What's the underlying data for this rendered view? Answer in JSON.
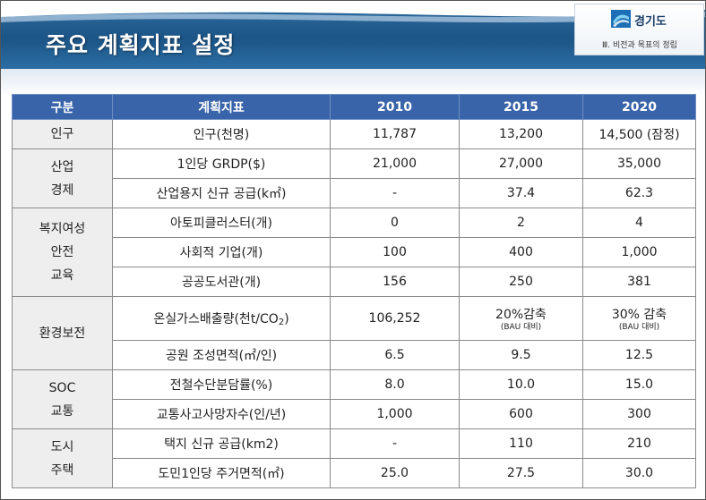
{
  "header": {
    "title": "주요 계획지표 설정",
    "brand": "경기도",
    "section": "Ⅲ. 비전과 목표의 정립"
  },
  "table": {
    "columns": [
      "구분",
      "계획지표",
      "2010",
      "2015",
      "2020"
    ],
    "groups": [
      {
        "category": [
          "인구"
        ],
        "rows": [
          {
            "indicator": "인구(천명)",
            "v2010": "11,787",
            "v2015": "13,200",
            "v2020": "14,500 (잠정)"
          }
        ]
      },
      {
        "category": [
          "산업",
          "경제"
        ],
        "rows": [
          {
            "indicator": "1인당 GRDP($)",
            "v2010": "21,000",
            "v2015": "27,000",
            "v2020": "35,000"
          },
          {
            "indicator": "산업용지 신규 공급(k㎡)",
            "v2010": "-",
            "v2015": "37.4",
            "v2020": "62.3"
          }
        ]
      },
      {
        "category": [
          "복지여성",
          "안전",
          "교육"
        ],
        "rows": [
          {
            "indicator": "아토피클러스터(개)",
            "v2010": "0",
            "v2015": "2",
            "v2020": "4"
          },
          {
            "indicator": "사회적 기업(개)",
            "v2010": "100",
            "v2015": "400",
            "v2020": "1,000"
          },
          {
            "indicator": "공공도서관(개)",
            "v2010": "156",
            "v2015": "250",
            "v2020": "381"
          }
        ]
      },
      {
        "category": [
          "환경보전"
        ],
        "rows": [
          {
            "indicator_main": "온실가스배출량(천t/CO",
            "indicator_sub": "2",
            "indicator_end": ")",
            "v2010": "106,252",
            "v2015": "20%감축",
            "v2015_note": "(BAU 대비)",
            "v2020": "30% 감축",
            "v2020_note": "(BAU 대비)"
          },
          {
            "indicator": "공원 조성면적(㎡/인)",
            "v2010": "6.5",
            "v2015": "9.5",
            "v2020": "12.5"
          }
        ]
      },
      {
        "category": [
          "SOC",
          "교통"
        ],
        "rows": [
          {
            "indicator": "전철수단분담률(%)",
            "v2010": "8.0",
            "v2015": "10.0",
            "v2020": "15.0"
          },
          {
            "indicator": "교통사고사망자수(인/년)",
            "v2010": "1,000",
            "v2015": "600",
            "v2020": "300"
          }
        ]
      },
      {
        "category": [
          "도시",
          "주택"
        ],
        "rows": [
          {
            "indicator": "택지 신규 공급(km2)",
            "v2010": "-",
            "v2015": "110",
            "v2020": "210"
          },
          {
            "indicator": "도민1인당 주거면적(㎡)",
            "v2010": "25.0",
            "v2015": "27.5",
            "v2020": "30.0"
          }
        ]
      }
    ]
  }
}
